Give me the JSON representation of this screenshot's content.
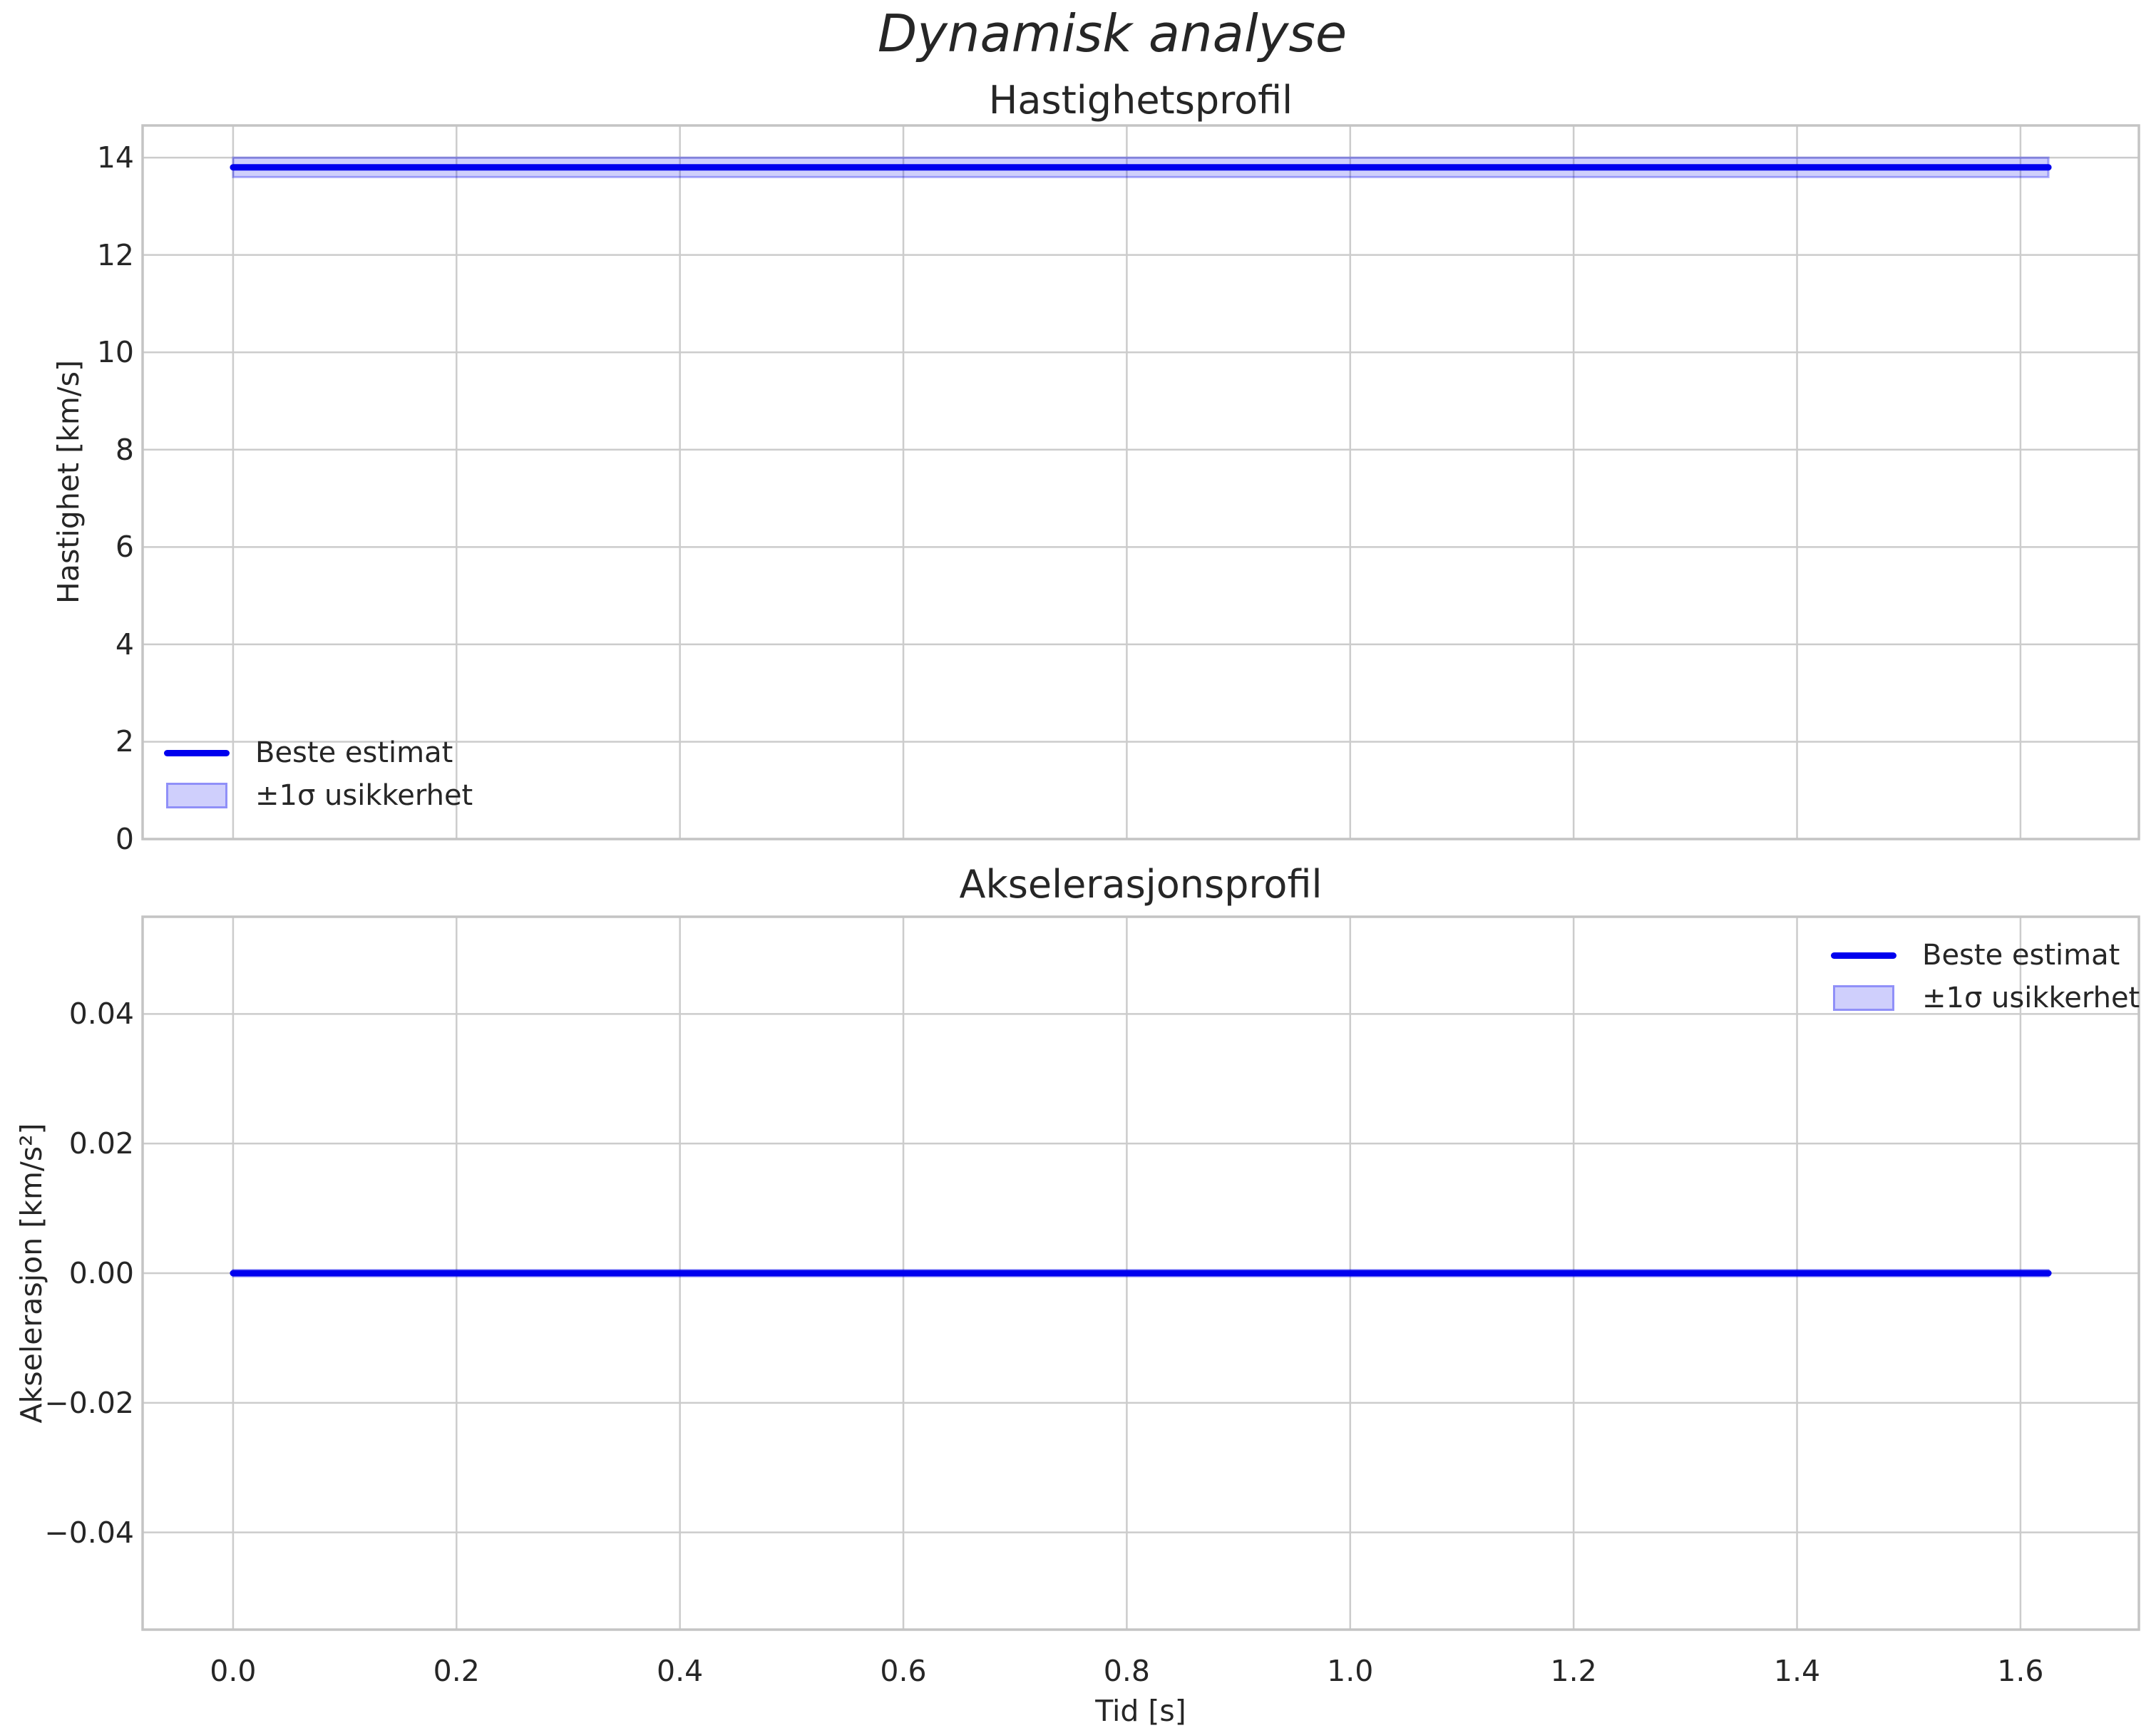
{
  "figure": {
    "suptitle": "Dynamisk analyse",
    "colors": {
      "line": "#0000ee",
      "band_fill": "rgba(0,0,238,0.19)",
      "band_edge": "rgba(0,0,238,0.30)",
      "grid": "#cccccc",
      "spine": "#c4c4c4",
      "text": "#262626",
      "background": "#ffffff"
    }
  },
  "chart_data": [
    {
      "type": "line",
      "title": "Hastighetsprofil",
      "xlabel": "",
      "ylabel": "Hastighet [km/s]",
      "x": [
        0.0,
        1.625
      ],
      "series": [
        {
          "name": "Beste estimat",
          "values": [
            13.8,
            13.8
          ],
          "color": "#0000ee"
        }
      ],
      "uncertainty_band": {
        "name": "±1σ usikkerhet",
        "lower": [
          13.6,
          13.6
        ],
        "upper": [
          14.0,
          14.0
        ]
      },
      "xlim": [
        -0.081,
        1.706
      ],
      "ylim": [
        0,
        14.66
      ],
      "xticks": {
        "values": [
          0.0,
          0.2,
          0.4,
          0.6,
          0.8,
          1.0,
          1.2,
          1.4,
          1.6
        ],
        "labels": [
          "0.0",
          "0.2",
          "0.4",
          "0.6",
          "0.8",
          "1.0",
          "1.2",
          "1.4",
          "1.6"
        ],
        "labels_visible": false
      },
      "yticks": {
        "values": [
          0,
          2,
          4,
          6,
          8,
          10,
          12,
          14
        ],
        "labels": [
          "0",
          "2",
          "4",
          "6",
          "8",
          "10",
          "12",
          "14"
        ]
      },
      "grid": true,
      "legend": {
        "position": "lower-left",
        "entries": [
          {
            "label": "Beste estimat",
            "swatch": "line"
          },
          {
            "label": "±1σ usikkerhet",
            "swatch": "band"
          }
        ]
      }
    },
    {
      "type": "line",
      "title": "Akselerasjonsprofil",
      "xlabel": "Tid [s]",
      "ylabel": "Akselerasjon [km/s²]",
      "x": [
        0.0,
        1.625
      ],
      "series": [
        {
          "name": "Beste estimat",
          "values": [
            0.0,
            0.0
          ],
          "color": "#0000ee"
        }
      ],
      "uncertainty_band": {
        "name": "±1σ usikkerhet",
        "lower": [
          -0.0005,
          -0.0005
        ],
        "upper": [
          0.0005,
          0.0005
        ]
      },
      "xlim": [
        -0.081,
        1.706
      ],
      "ylim": [
        -0.055,
        0.055
      ],
      "xticks": {
        "values": [
          0.0,
          0.2,
          0.4,
          0.6,
          0.8,
          1.0,
          1.2,
          1.4,
          1.6
        ],
        "labels": [
          "0.0",
          "0.2",
          "0.4",
          "0.6",
          "0.8",
          "1.0",
          "1.2",
          "1.4",
          "1.6"
        ],
        "labels_visible": true
      },
      "yticks": {
        "values": [
          0.04,
          0.02,
          0,
          -0.02,
          -0.04
        ],
        "labels": [
          "0.04",
          "0.02",
          "0.00",
          "−0.02",
          "−0.04"
        ]
      },
      "grid": true,
      "legend": {
        "position": "upper-right",
        "entries": [
          {
            "label": "Beste estimat",
            "swatch": "line"
          },
          {
            "label": "±1σ usikkerhet",
            "swatch": "band"
          }
        ]
      }
    }
  ]
}
